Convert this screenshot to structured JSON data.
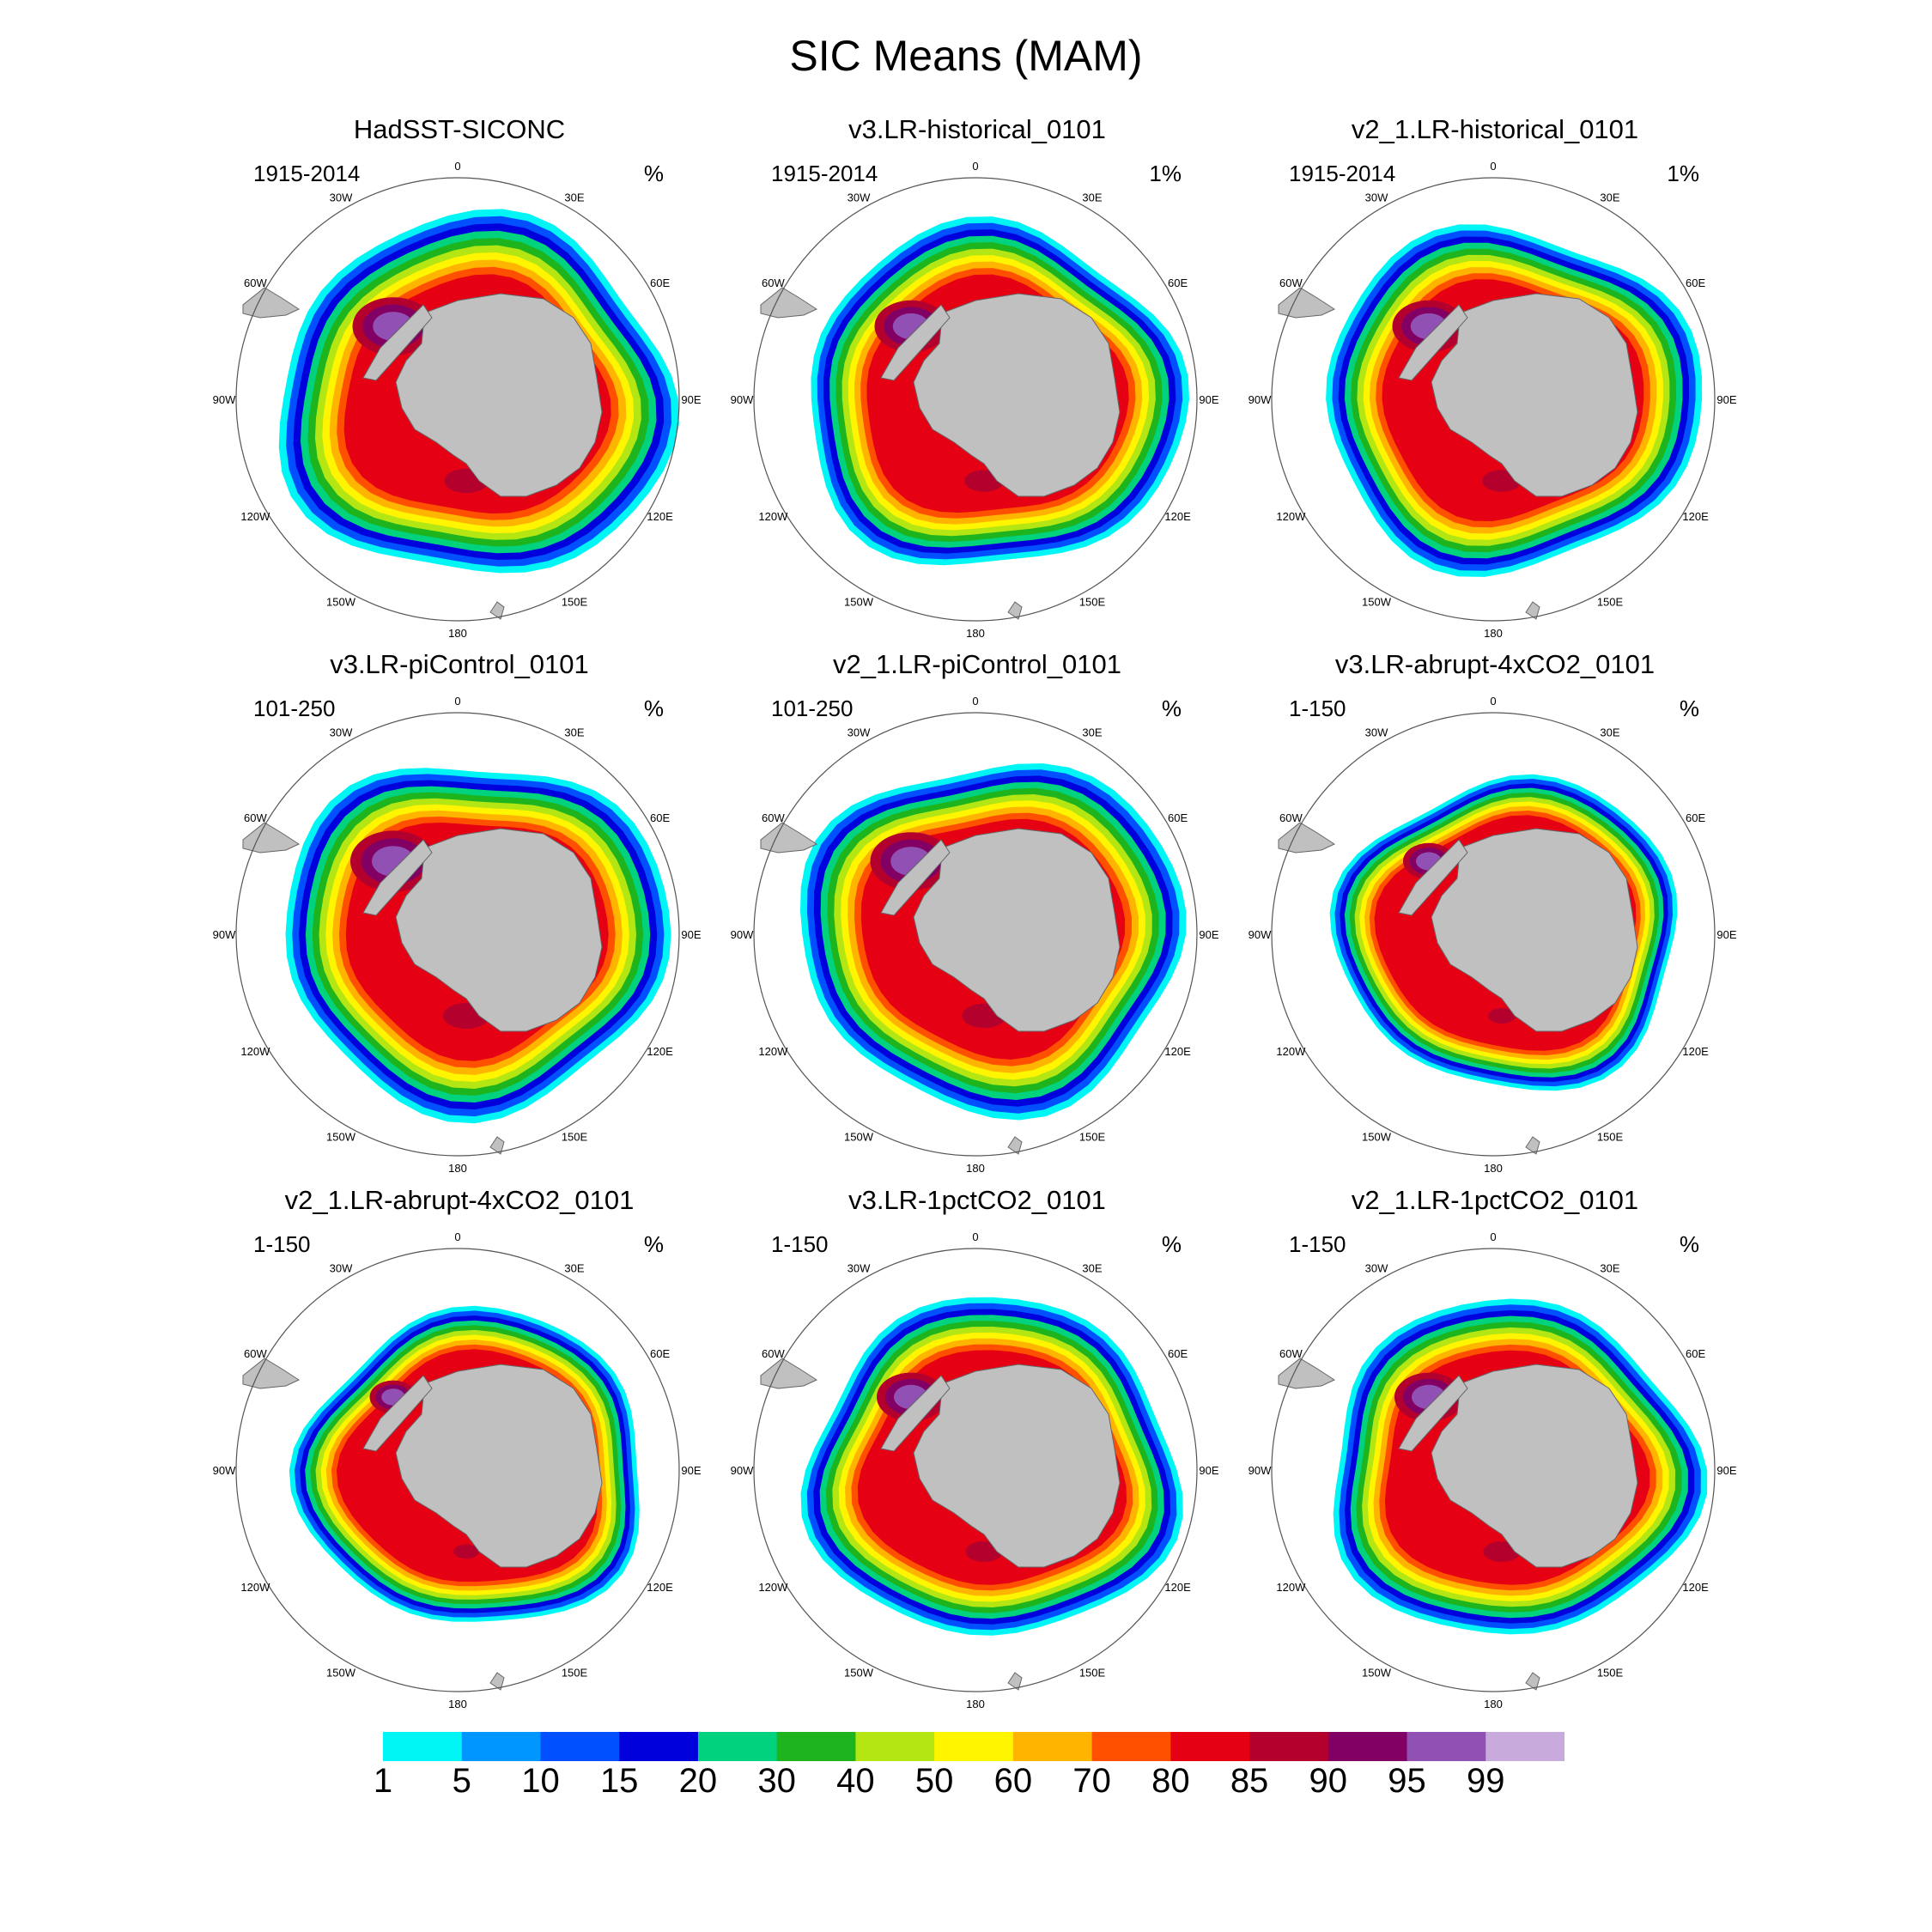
{
  "chart_data": {
    "type": "polar-map-panels",
    "title": "SIC Means (MAM)",
    "panels": [
      {
        "title": "HadSST-SICONC",
        "period": "1915-2014",
        "units": "%",
        "extent": 1.0,
        "core": 0.55
      },
      {
        "title": "v3.LR-historical_0101",
        "period": "1915-2014",
        "units": "1%",
        "extent": 0.82,
        "core": 0.45
      },
      {
        "title": "v2_1.LR-historical_0101",
        "period": "1915-2014",
        "units": "1%",
        "extent": 0.8,
        "core": 0.45
      },
      {
        "title": "v3.LR-piControl_0101",
        "period": "101-250",
        "units": "%",
        "extent": 0.9,
        "core": 0.6
      },
      {
        "title": "v2_1.LR-piControl_0101",
        "period": "101-250",
        "units": "%",
        "extent": 0.88,
        "core": 0.55
      },
      {
        "title": "v3.LR-abrupt-4xCO2_0101",
        "period": "1-150",
        "units": "%",
        "extent": 0.45,
        "core": 0.2
      },
      {
        "title": "v2_1.LR-abrupt-4xCO2_0101",
        "period": "1-150",
        "units": "%",
        "extent": 0.5,
        "core": 0.15
      },
      {
        "title": "v3.LR-1pctCO2_0101",
        "period": "1-150",
        "units": "%",
        "extent": 0.75,
        "core": 0.4
      },
      {
        "title": "v2_1.LR-1pctCO2_0101",
        "period": "1-150",
        "units": "%",
        "extent": 0.72,
        "core": 0.4
      }
    ],
    "longitude_labels": [
      "0",
      "30E",
      "60E",
      "90E",
      "120E",
      "150E",
      "180",
      "150W",
      "120W",
      "90W",
      "60W",
      "30W"
    ],
    "colorbar": {
      "levels": [
        "1",
        "5",
        "10",
        "15",
        "20",
        "30",
        "40",
        "50",
        "60",
        "70",
        "80",
        "85",
        "90",
        "95",
        "99"
      ],
      "colors": [
        "#00f5f5",
        "#0096ff",
        "#0050ff",
        "#0000dc",
        "#00d27d",
        "#1eb41e",
        "#b4e614",
        "#fff500",
        "#ffb400",
        "#ff5000",
        "#e60014",
        "#b4002d",
        "#820064",
        "#9150b4",
        "#c8aadc"
      ]
    }
  },
  "colors": {
    "land": "#c0c0c0",
    "circle": "#555555"
  }
}
